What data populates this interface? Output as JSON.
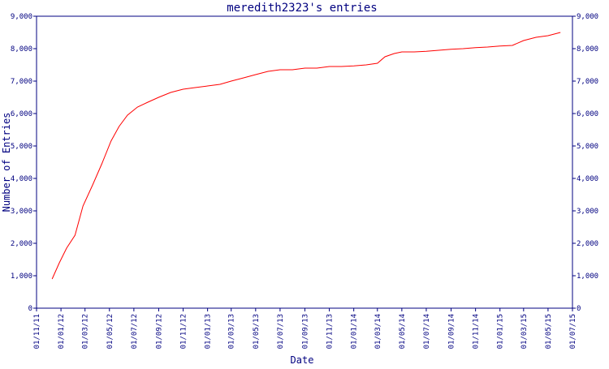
{
  "chart_data": {
    "type": "line",
    "title": "meredith2323's entries",
    "xlabel": "Date",
    "ylabel": "Number of Entries",
    "x_axis": {
      "type": "date",
      "start": "2011-11-01",
      "end": "2015-07-01"
    },
    "ylim": [
      0,
      9000
    ],
    "grid": false,
    "legend": "none",
    "line_color": "#ff0000",
    "axis_color": "#000080",
    "x_tick_labels": [
      "01/11/11",
      "01/01/12",
      "01/03/12",
      "01/05/12",
      "01/07/12",
      "01/09/12",
      "01/11/12",
      "01/01/13",
      "01/03/13",
      "01/05/13",
      "01/07/13",
      "01/09/13",
      "01/11/13",
      "01/01/14",
      "01/03/14",
      "01/05/14",
      "01/07/14",
      "01/09/14",
      "01/11/14",
      "01/01/15",
      "01/03/15",
      "01/05/15",
      "01/07/15"
    ],
    "y_tick_labels": [
      "0",
      "1,000",
      "2,000",
      "3,000",
      "4,000",
      "5,000",
      "6,000",
      "7,000",
      "8,000",
      "9,000"
    ],
    "series": [
      {
        "x": [
          "2011-12-10",
          "2011-12-28",
          "2012-01-15",
          "2012-02-05",
          "2012-02-25",
          "2012-03-20",
          "2012-04-12",
          "2012-05-05",
          "2012-05-25",
          "2012-06-15",
          "2012-07-10",
          "2012-08-05",
          "2012-09-01",
          "2012-10-01",
          "2012-11-01",
          "2012-12-01",
          "2013-01-01",
          "2013-02-01",
          "2013-03-01",
          "2013-04-01",
          "2013-05-01",
          "2013-06-01",
          "2013-07-01",
          "2013-08-01",
          "2013-09-01",
          "2013-10-01",
          "2013-11-01",
          "2013-12-01",
          "2014-01-01",
          "2014-02-01",
          "2014-03-01",
          "2014-03-20",
          "2014-04-12",
          "2014-05-01",
          "2014-06-01",
          "2014-07-01",
          "2014-08-01",
          "2014-09-01",
          "2014-10-01",
          "2014-11-01",
          "2014-12-01",
          "2015-01-01",
          "2015-02-01",
          "2015-03-01",
          "2015-04-01",
          "2015-05-01",
          "2015-06-01"
        ],
        "y": [
          900,
          1400,
          1850,
          2250,
          3150,
          3800,
          4450,
          5150,
          5600,
          5950,
          6200,
          6350,
          6500,
          6650,
          6750,
          6800,
          6850,
          6900,
          7000,
          7100,
          7200,
          7300,
          7350,
          7350,
          7400,
          7400,
          7450,
          7450,
          7470,
          7500,
          7550,
          7750,
          7850,
          7900,
          7900,
          7920,
          7950,
          7980,
          8000,
          8030,
          8050,
          8080,
          8100,
          8250,
          8350,
          8400,
          8500
        ]
      }
    ]
  }
}
